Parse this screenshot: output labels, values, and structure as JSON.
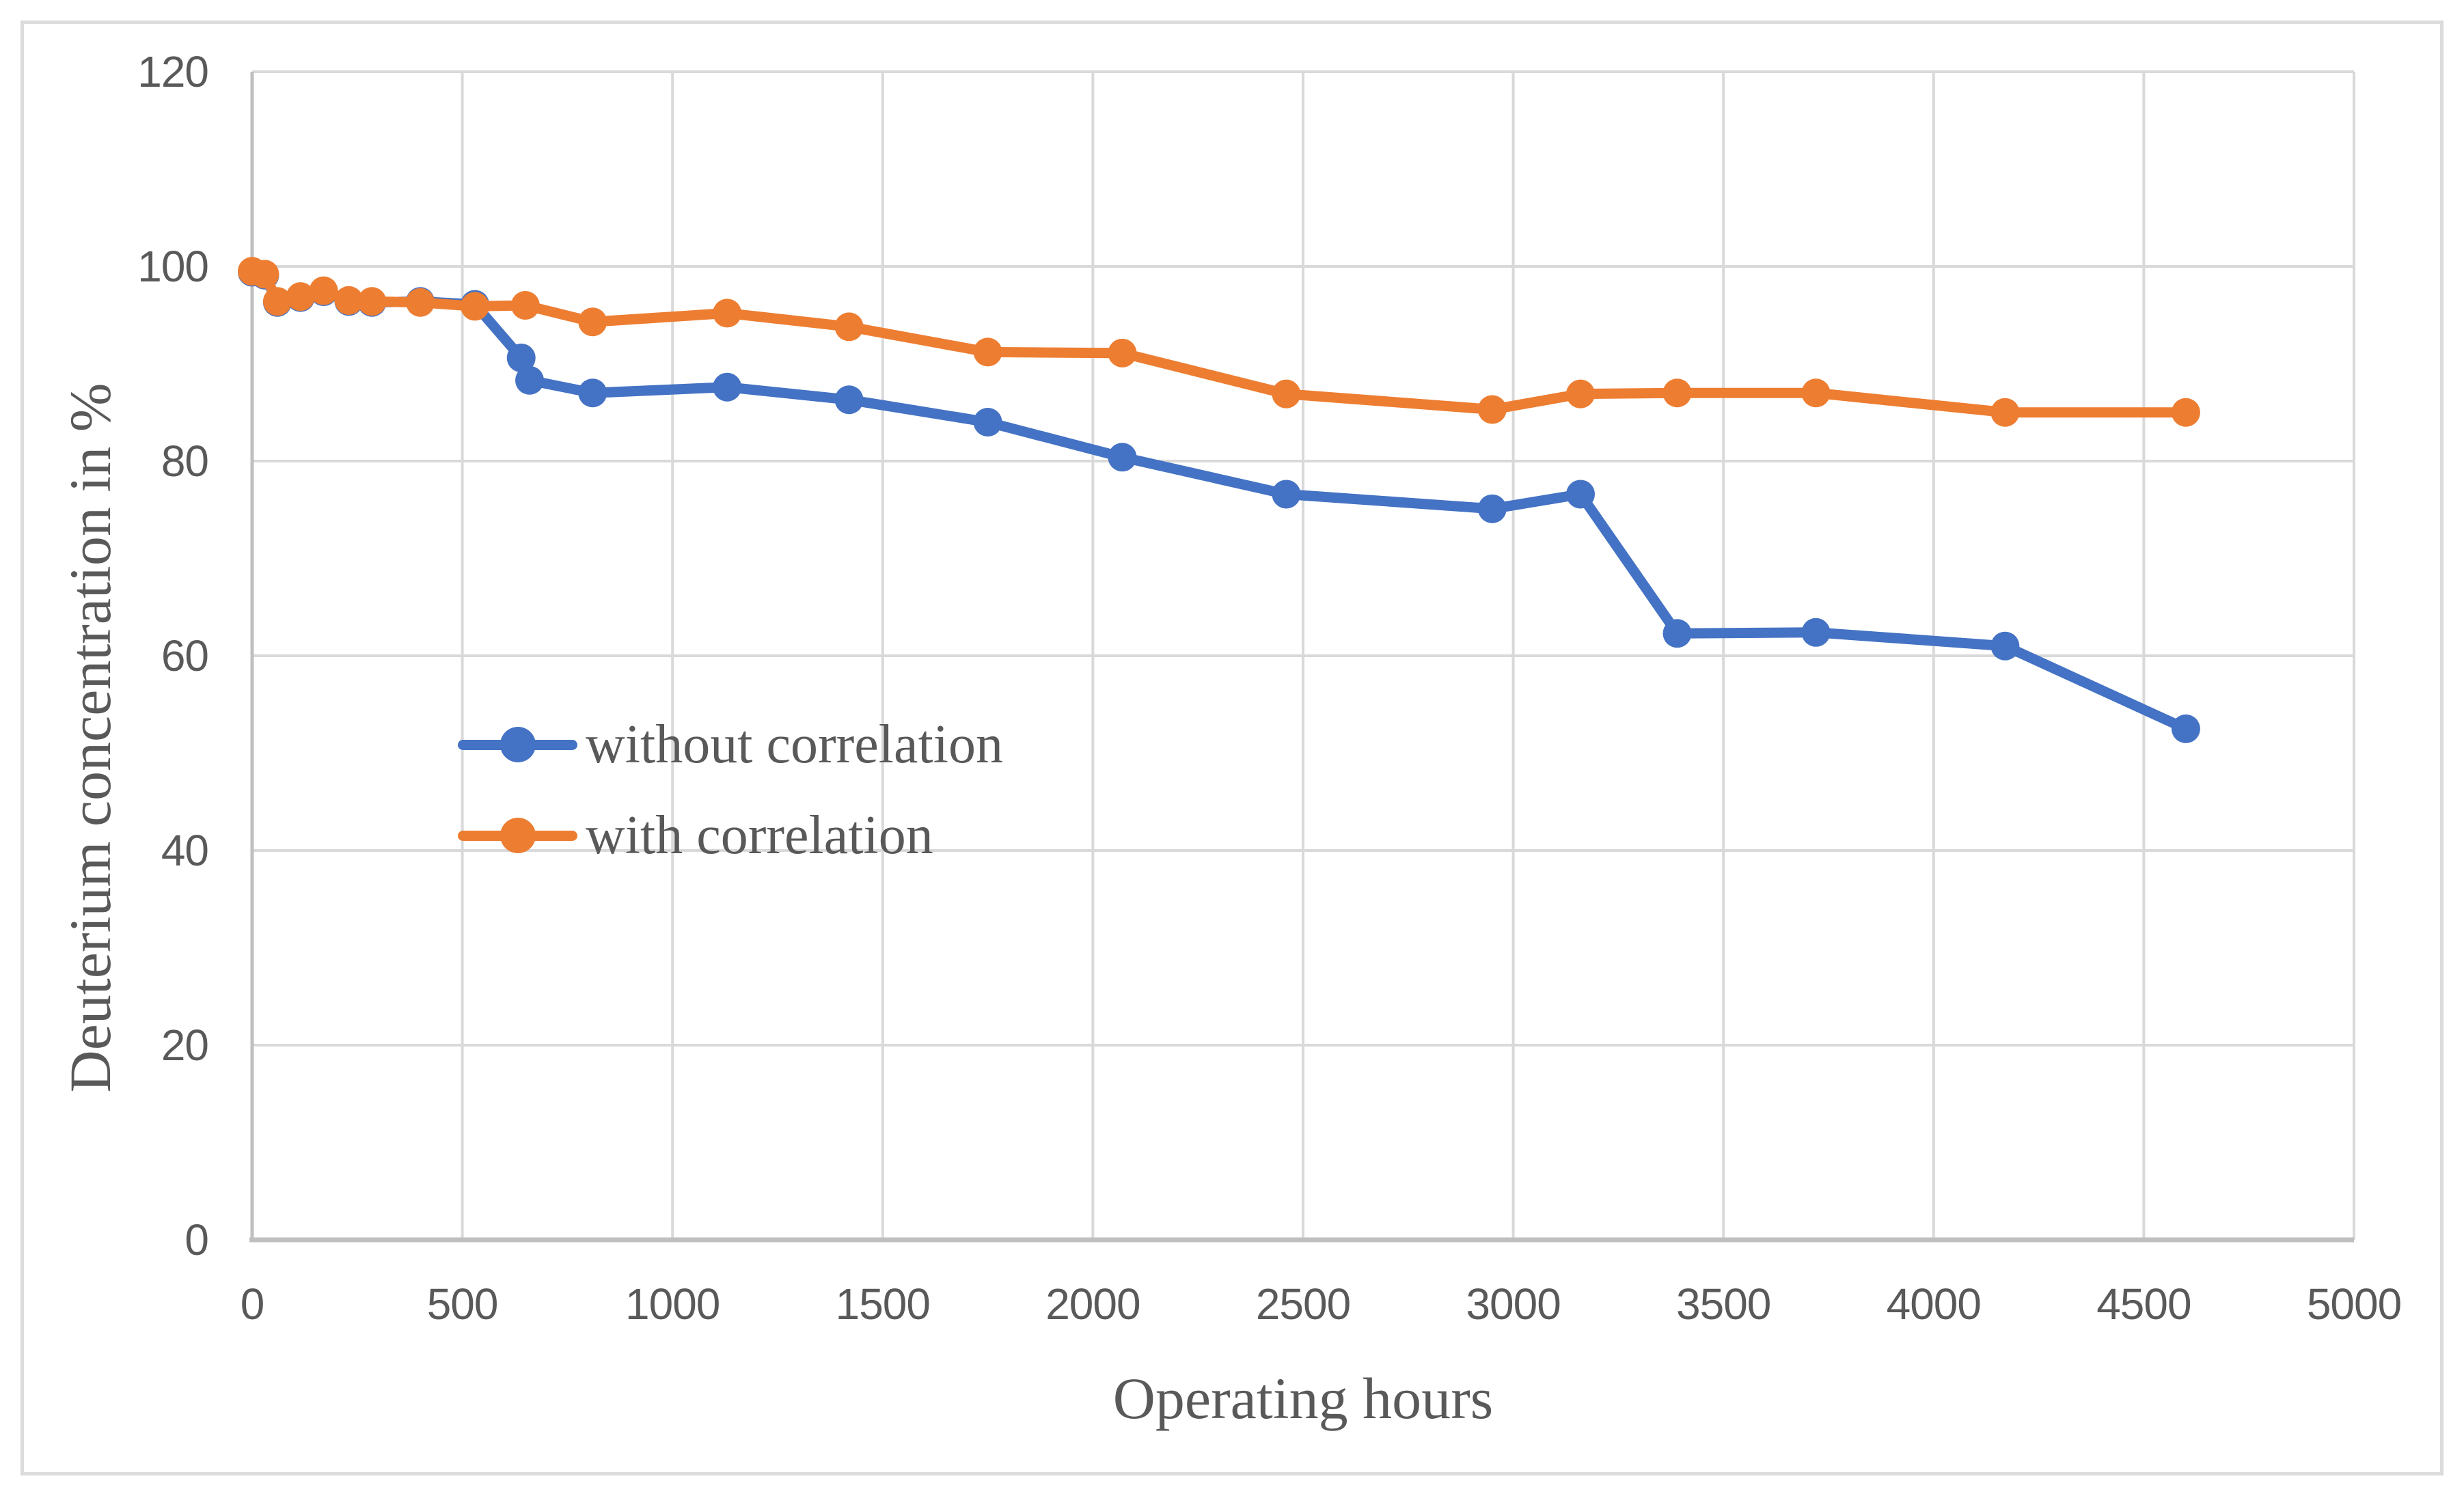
{
  "chart_data": {
    "type": "line",
    "title": "",
    "xlabel": "Operating hours",
    "ylabel": "Deuterium concentration in %",
    "xlim": [
      0,
      5000
    ],
    "ylim": [
      0,
      120
    ],
    "x_ticks": [
      0,
      500,
      1000,
      1500,
      2000,
      2500,
      3000,
      3500,
      4000,
      4500,
      5000
    ],
    "y_ticks": [
      0,
      20,
      40,
      60,
      80,
      100,
      120
    ],
    "grid": true,
    "legend_position": "inside-left-middle",
    "marker": "circle",
    "series": [
      {
        "name": "without correlation",
        "color": "#4472C4",
        "points": [
          [
            0,
            99.4
          ],
          [
            30,
            99.1
          ],
          [
            60,
            96.3
          ],
          [
            115,
            96.8
          ],
          [
            170,
            97.4
          ],
          [
            230,
            96.4
          ],
          [
            285,
            96.3
          ],
          [
            400,
            96.4
          ],
          [
            530,
            96.1
          ],
          [
            640,
            90.6
          ],
          [
            660,
            88.3
          ],
          [
            810,
            87.0
          ],
          [
            1130,
            87.6
          ],
          [
            1420,
            86.3
          ],
          [
            1750,
            84.0
          ],
          [
            2070,
            80.4
          ],
          [
            2460,
            76.6
          ],
          [
            2950,
            75.1
          ],
          [
            3160,
            76.6
          ],
          [
            3390,
            62.3
          ],
          [
            3720,
            62.4
          ],
          [
            4170,
            61.0
          ],
          [
            4600,
            52.5
          ]
        ]
      },
      {
        "name": "with correlation",
        "color": "#ED7D31",
        "points": [
          [
            0,
            99.5
          ],
          [
            30,
            99.2
          ],
          [
            60,
            96.4
          ],
          [
            115,
            96.9
          ],
          [
            170,
            97.5
          ],
          [
            230,
            96.5
          ],
          [
            285,
            96.4
          ],
          [
            400,
            96.3
          ],
          [
            530,
            95.9
          ],
          [
            650,
            96.0
          ],
          [
            810,
            94.3
          ],
          [
            1130,
            95.2
          ],
          [
            1420,
            93.8
          ],
          [
            1750,
            91.2
          ],
          [
            2070,
            91.1
          ],
          [
            2460,
            86.9
          ],
          [
            2950,
            85.3
          ],
          [
            3160,
            86.9
          ],
          [
            3390,
            87.0
          ],
          [
            3720,
            87.0
          ],
          [
            4170,
            85.0
          ],
          [
            4600,
            85.0
          ]
        ]
      }
    ]
  },
  "colors": {
    "gridline": "#d9d9d9",
    "axis_line": "#bfbfbf",
    "tick_text": "#595959",
    "frame": "#dcdcdc",
    "background": "#ffffff"
  }
}
